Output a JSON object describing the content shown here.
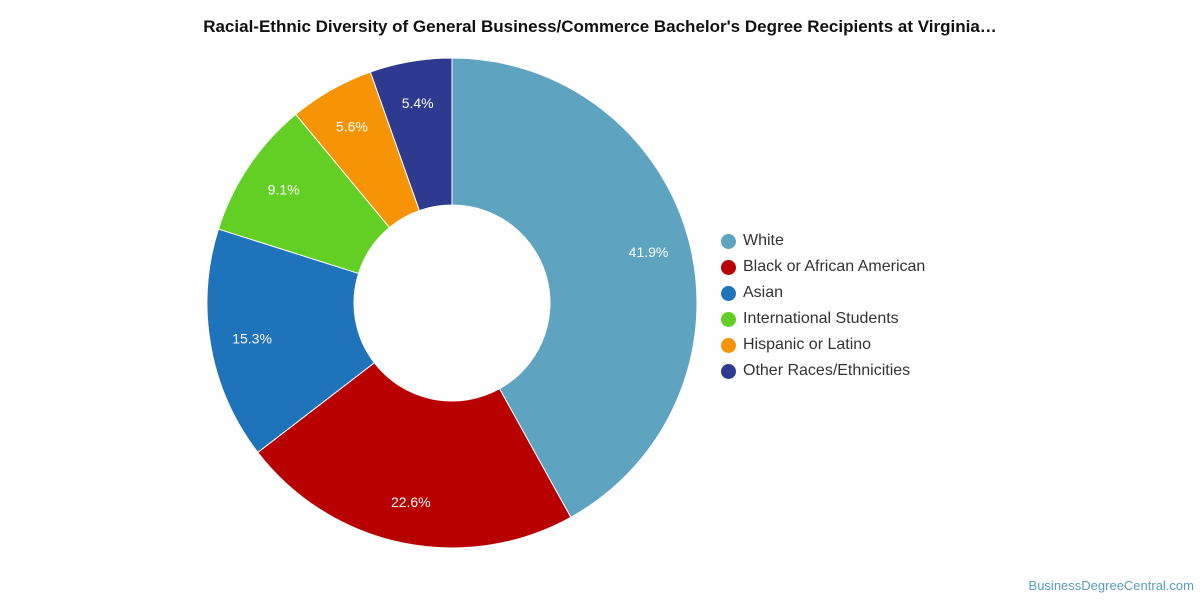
{
  "chart_data": {
    "type": "pie",
    "variant": "donut",
    "title": "Racial-Ethnic Diversity of General Business/Commerce Bachelor's Degree Recipients at Virginia…",
    "legend_position": "right",
    "unit": "%",
    "slices": [
      {
        "label": "White",
        "value": 41.9,
        "display": "41.9%",
        "color": "#5ea3c0"
      },
      {
        "label": "Black or African American",
        "value": 22.6,
        "display": "22.6%",
        "color": "#b80000"
      },
      {
        "label": "Asian",
        "value": 15.3,
        "display": "15.3%",
        "color": "#1f73ba"
      },
      {
        "label": "International Students",
        "value": 9.1,
        "display": "9.1%",
        "color": "#63cf24"
      },
      {
        "label": "Hispanic or Latino",
        "value": 5.6,
        "display": "5.6%",
        "color": "#f79406"
      },
      {
        "label": "Other Races/Ethnicities",
        "value": 5.4,
        "display": "5.4%",
        "color": "#2d3a8f"
      }
    ]
  },
  "source": "BusinessDegreeCentral.com"
}
